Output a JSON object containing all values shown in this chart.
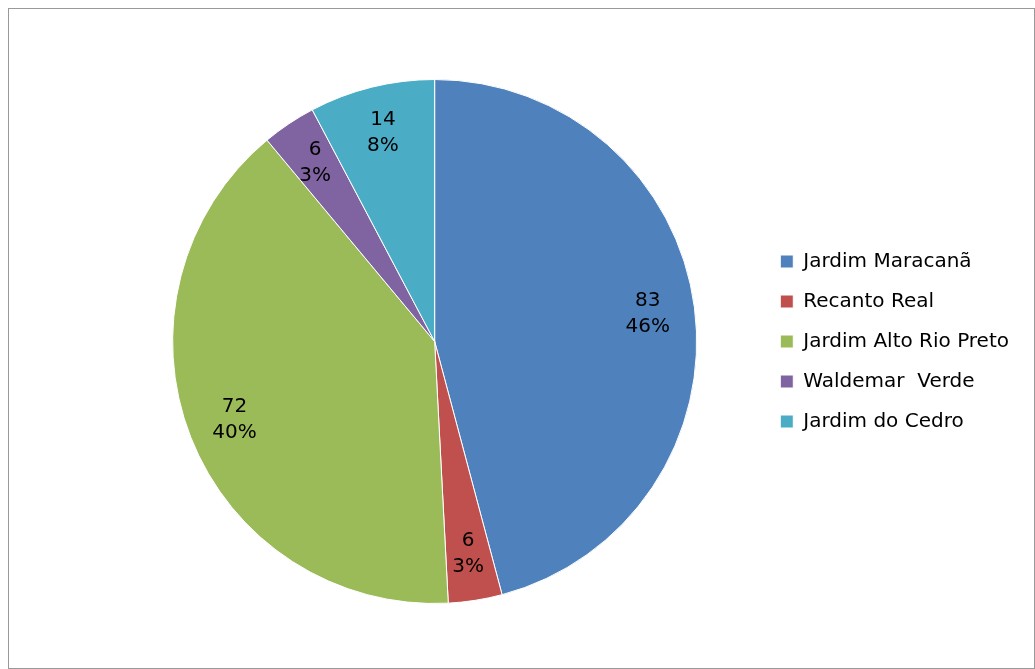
{
  "chart_data": {
    "type": "pie",
    "categories": [
      "Jardim Maracanã",
      "Recanto Real",
      "Jardim Alto Rio Preto",
      "Waldemar  Verde",
      "Jardim do Cedro"
    ],
    "values": [
      83,
      6,
      72,
      6,
      14
    ],
    "colors": [
      "#4f81bd",
      "#c0504d",
      "#9bbb59",
      "#8064a2",
      "#4bacc6"
    ],
    "value_labels": [
      "83\n46%",
      "6\n3%",
      "72\n40%",
      "6\n3%",
      "14\n8%"
    ],
    "legend": "right"
  }
}
